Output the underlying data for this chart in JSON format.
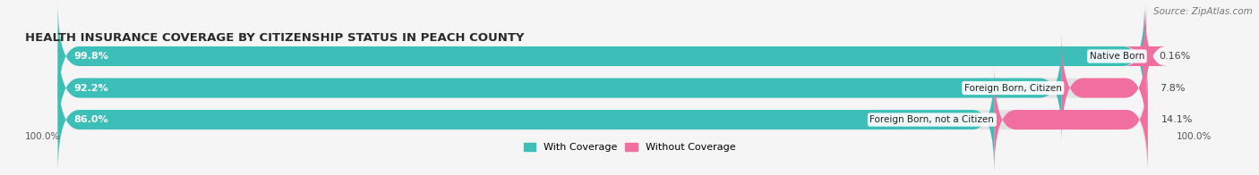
{
  "title": "HEALTH INSURANCE COVERAGE BY CITIZENSHIP STATUS IN PEACH COUNTY",
  "source": "Source: ZipAtlas.com",
  "categories": [
    "Native Born",
    "Foreign Born, Citizen",
    "Foreign Born, not a Citizen"
  ],
  "with_coverage": [
    99.8,
    92.2,
    86.0
  ],
  "without_coverage": [
    0.16,
    7.8,
    14.1
  ],
  "with_coverage_labels": [
    "99.8%",
    "92.2%",
    "86.0%"
  ],
  "without_coverage_labels": [
    "0.16%",
    "7.8%",
    "14.1%"
  ],
  "color_with": "#3CBFB8",
  "color_without": "#F06EA0",
  "bg_color": "#f5f5f5",
  "bar_bg": "#e2e2e2",
  "row_bg": "#ebebeb",
  "title_fontsize": 9.5,
  "source_fontsize": 7.5,
  "label_fontsize": 8,
  "legend_fontsize": 8,
  "axis_label_left": "100.0%",
  "axis_label_right": "100.0%",
  "total_width": 100
}
